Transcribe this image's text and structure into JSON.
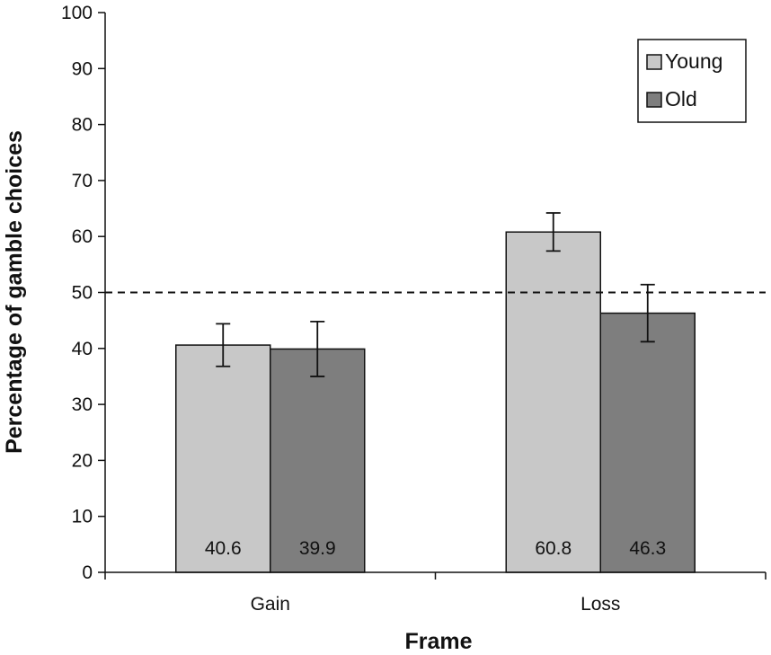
{
  "chart_data": {
    "type": "bar",
    "title": "",
    "xlabel": "Frame",
    "ylabel": "Percentage of gamble choices",
    "categories": [
      "Gain",
      "Loss"
    ],
    "ylim": [
      0,
      100
    ],
    "yticks": [
      0,
      10,
      20,
      30,
      40,
      50,
      60,
      70,
      80,
      90,
      100
    ],
    "grid": false,
    "reference_line": {
      "y": 50,
      "style": "dashed"
    },
    "legend": {
      "position": "top-right"
    },
    "series": [
      {
        "name": "Young",
        "color": "#c8c8c8",
        "values": [
          40.6,
          60.8
        ],
        "labels": [
          "40.6",
          "60.8"
        ],
        "error": [
          3.8,
          3.4
        ]
      },
      {
        "name": "Old",
        "color": "#7e7e7e",
        "values": [
          39.9,
          46.3
        ],
        "labels": [
          "39.9",
          "46.3"
        ],
        "error": [
          4.9,
          5.1
        ]
      }
    ]
  }
}
